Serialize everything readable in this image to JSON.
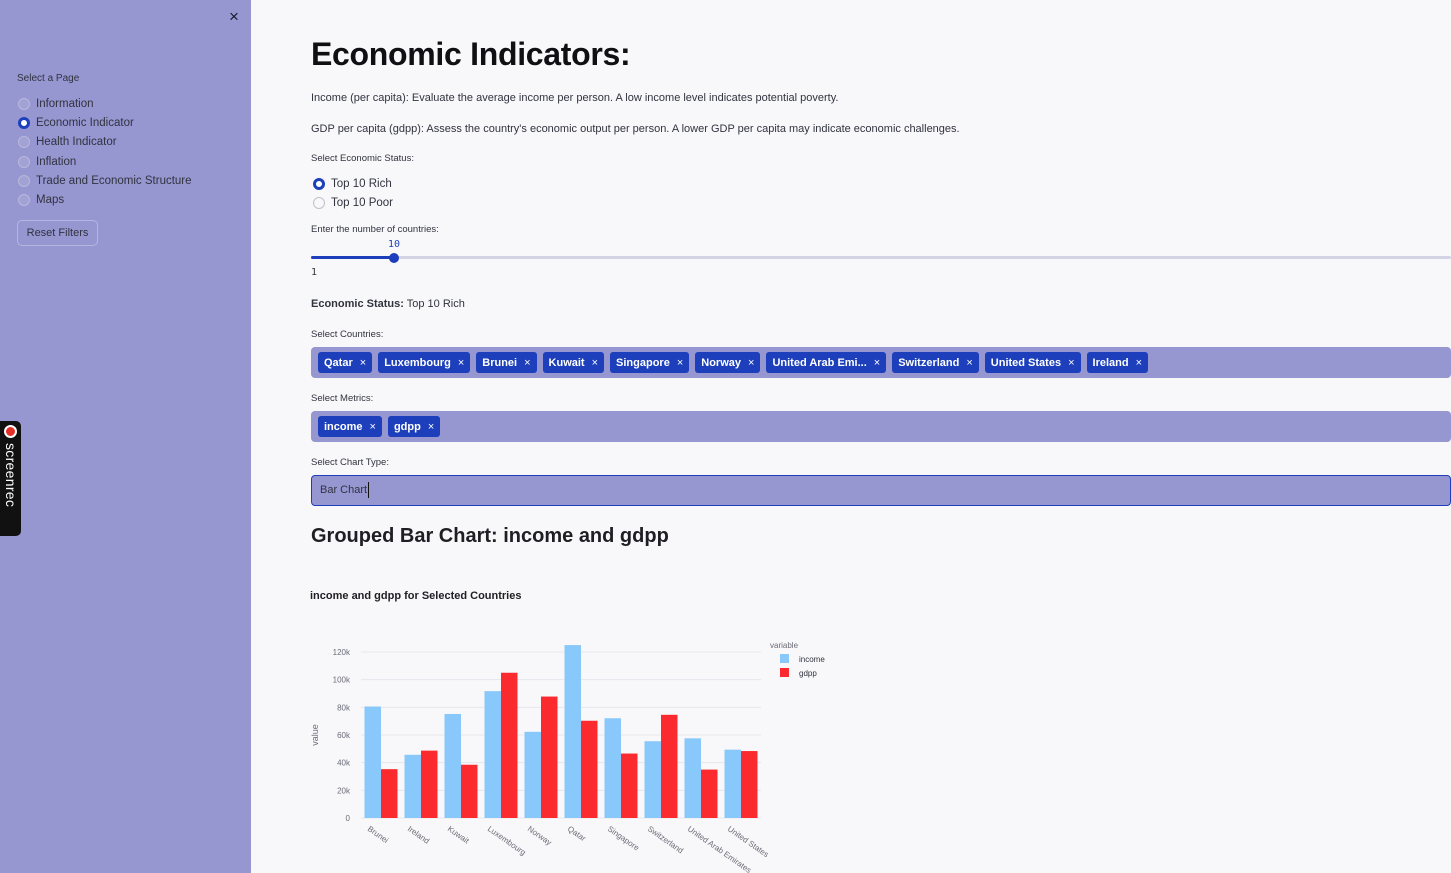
{
  "sidebar": {
    "close_icon": "×",
    "select_label": "Select a Page",
    "pages": [
      {
        "label": "Information",
        "checked": false
      },
      {
        "label": "Economic Indicator",
        "checked": true
      },
      {
        "label": "Health Indicator",
        "checked": false
      },
      {
        "label": "Inflation",
        "checked": false
      },
      {
        "label": "Trade and Economic Structure",
        "checked": false
      },
      {
        "label": "Maps",
        "checked": false
      }
    ],
    "reset_label": "Reset Filters"
  },
  "overlay": {
    "screenrec_label": "screenrec"
  },
  "main": {
    "title": "Economic Indicators:",
    "desc_income": "Income (per capita): Evaluate the average income per person. A low income level indicates potential poverty.",
    "desc_gdpp": "GDP per capita (gdpp): Assess the country's economic output per person. A lower GDP per capita may indicate economic challenges.",
    "status_label": "Select Economic Status:",
    "status_options": [
      {
        "label": "Top 10 Rich",
        "checked": true
      },
      {
        "label": "Top 10 Poor",
        "checked": false
      }
    ],
    "slider_label": "Enter the number of countries:",
    "slider_value": "10",
    "slider_min": "1",
    "slider_fraction": 0.073,
    "status_line_label": "Economic Status:",
    "status_line_value": "Top 10 Rich",
    "countries_label": "Select Countries:",
    "countries": [
      "Qatar",
      "Luxembourg",
      "Brunei",
      "Kuwait",
      "Singapore",
      "Norway",
      "United Arab Emi...",
      "Switzerland",
      "United States",
      "Ireland"
    ],
    "metrics_label": "Select Metrics:",
    "metrics": [
      "income",
      "gdpp"
    ],
    "chart_type_label": "Select Chart Type:",
    "chart_type_value": "Bar Chart",
    "section_title": "Grouped Bar Chart: income and gdpp",
    "tag_remove": "×"
  },
  "chart_data": {
    "type": "bar",
    "title": "income and gdpp for Selected Countries",
    "xlabel": "",
    "ylabel": "value",
    "categories": [
      "Brunei",
      "Ireland",
      "Kuwait",
      "Luxembourg",
      "Norway",
      "Qatar",
      "Singapore",
      "Switzerland",
      "United Arab Emirates",
      "United States"
    ],
    "series": [
      {
        "name": "income",
        "color": "#88c8fa",
        "values": [
          80600,
          45700,
          75200,
          91700,
          62300,
          125000,
          72100,
          55500,
          57600,
          49400
        ]
      },
      {
        "name": "gdpp",
        "color": "#fb2a2f",
        "values": [
          35300,
          48700,
          38500,
          105000,
          87800,
          70300,
          46600,
          74600,
          35000,
          48400
        ]
      }
    ],
    "yticks": [
      0,
      20000,
      40000,
      60000,
      80000,
      100000,
      120000
    ],
    "ytick_labels": [
      "0",
      "20k",
      "40k",
      "60k",
      "80k",
      "100k",
      "120k"
    ],
    "ylim": [
      0,
      125000
    ],
    "legend_title": "variable",
    "legend_position": "top-right",
    "grid": true
  }
}
